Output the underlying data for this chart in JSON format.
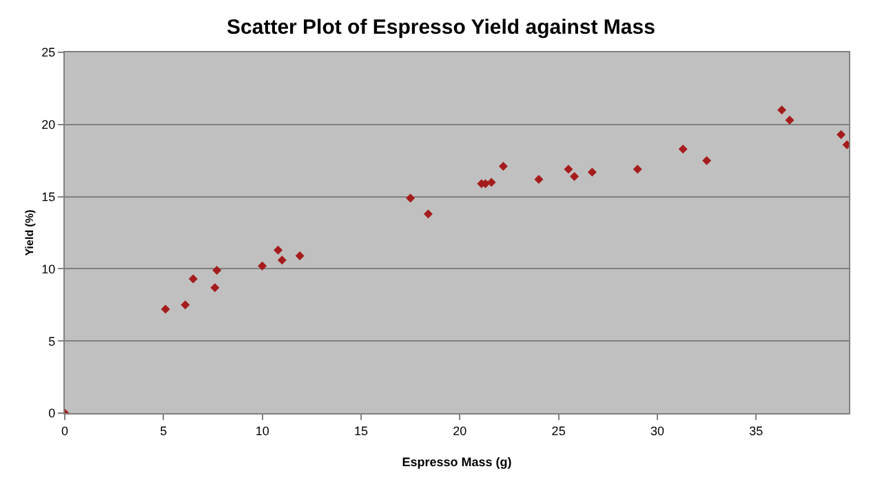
{
  "chart_data": {
    "type": "scatter",
    "title": "Scatter Plot of Espresso Yield against Mass",
    "xlabel": "Espresso Mass (g)",
    "ylabel": "Yield (%)",
    "x": [
      0,
      5.1,
      6.1,
      6.5,
      7.6,
      7.7,
      10.0,
      10.8,
      11.0,
      11.9,
      17.5,
      18.4,
      21.1,
      21.3,
      21.6,
      22.2,
      24.0,
      25.5,
      25.8,
      26.7,
      29.0,
      31.3,
      32.5,
      36.3,
      36.7,
      39.3,
      39.6
    ],
    "values": [
      0,
      7.2,
      7.5,
      9.3,
      8.7,
      9.9,
      10.2,
      11.3,
      10.6,
      10.9,
      14.9,
      13.8,
      15.9,
      15.9,
      16.0,
      17.1,
      16.2,
      16.9,
      16.4,
      16.7,
      16.9,
      18.3,
      17.5,
      21.0,
      20.3,
      19.3,
      18.6
    ],
    "color": "#a51c1c",
    "marker": "diamond",
    "xlim": [
      0,
      39.7
    ],
    "xticks": [
      0,
      5,
      10,
      15,
      20,
      25,
      30,
      35
    ],
    "ylim": [
      0,
      25
    ],
    "yticks": [
      0,
      5,
      10,
      15,
      20,
      25
    ],
    "grid": "y"
  }
}
